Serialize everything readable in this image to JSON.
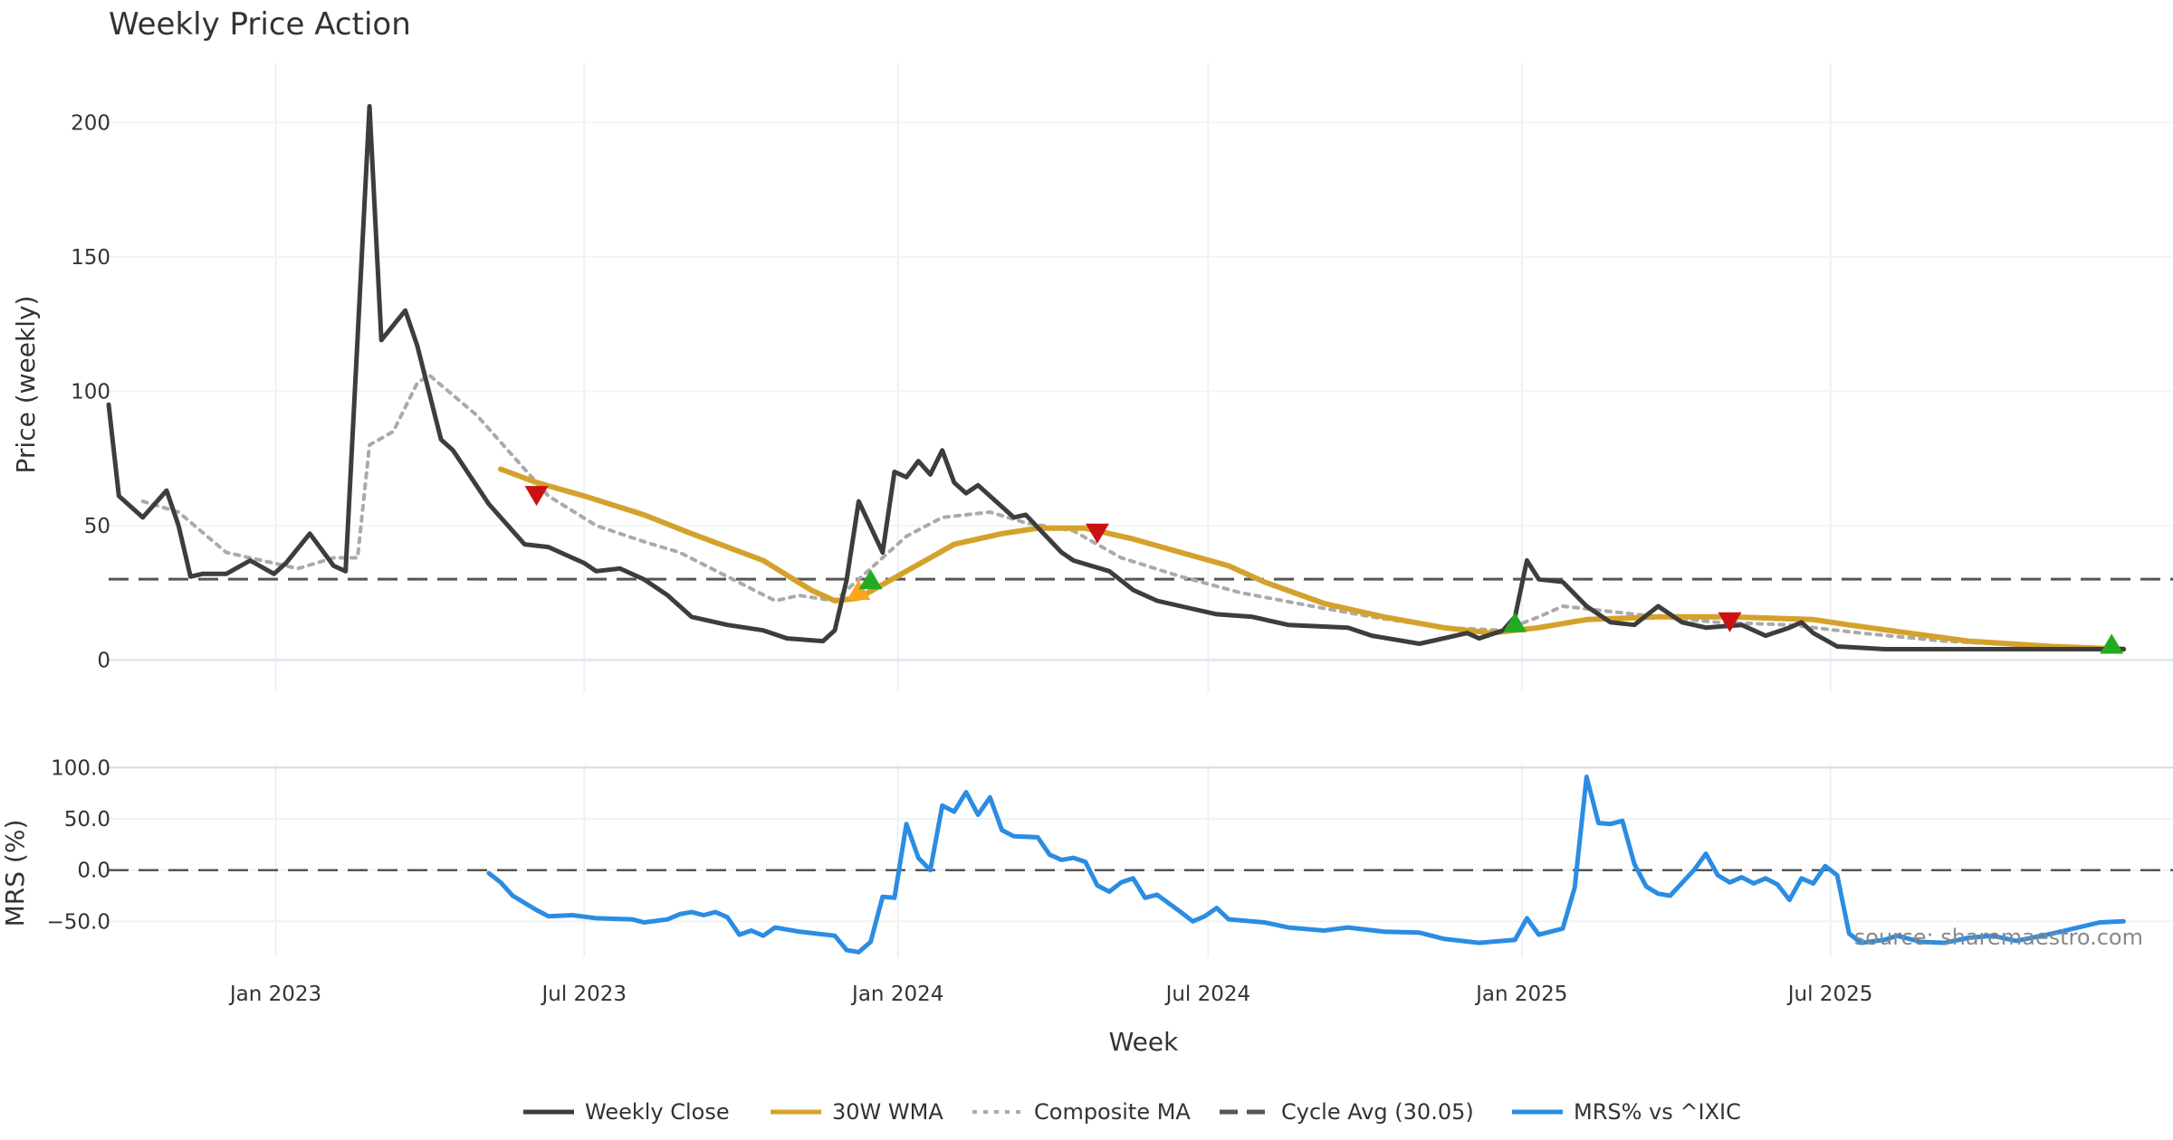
{
  "chart_data": {
    "type": "line",
    "title": "Weekly Price Action",
    "xlabel": "Week",
    "x_ticks": [
      {
        "label": "Jan 2023",
        "date": "2023-01-01"
      },
      {
        "label": "Jul 2023",
        "date": "2023-07-01"
      },
      {
        "label": "Jan 2024",
        "date": "2024-01-01"
      },
      {
        "label": "Jul 2024",
        "date": "2024-07-01"
      },
      {
        "label": "Jan 2025",
        "date": "2025-01-01"
      },
      {
        "label": "Jul 2025",
        "date": "2025-07-01"
      }
    ],
    "x_range": [
      "2022-09-25",
      "2026-01-18"
    ],
    "price_panel": {
      "ylabel": "Price (weekly)",
      "ylim": [
        -12,
        222
      ],
      "yticks": [
        0,
        50,
        100,
        150,
        200
      ],
      "yticklabels": [
        "0",
        "50",
        "100",
        "150",
        "200"
      ]
    },
    "mrs_panel": {
      "ylabel": "MRS (%)",
      "ylim": [
        -85,
        103
      ],
      "yticks": [
        100,
        50,
        0,
        -50
      ],
      "yticklabels": [
        "100.0",
        "50.0",
        "0.0",
        "−50.0"
      ]
    },
    "cycle_avg": 30.05,
    "series": [
      {
        "name": "Weekly Close",
        "color": "#3d3d3d",
        "dash": "solid",
        "points": [
          [
            "2022-09-25",
            95
          ],
          [
            "2022-10-01",
            61
          ],
          [
            "2022-10-15",
            53
          ],
          [
            "2022-10-29",
            63
          ],
          [
            "2022-11-05",
            50
          ],
          [
            "2022-11-12",
            31
          ],
          [
            "2022-11-19",
            32
          ],
          [
            "2022-12-03",
            32
          ],
          [
            "2022-12-17",
            37
          ],
          [
            "2022-12-31",
            32
          ],
          [
            "2023-01-07",
            36
          ],
          [
            "2023-01-21",
            47
          ],
          [
            "2023-02-04",
            35
          ],
          [
            "2023-02-11",
            33
          ],
          [
            "2023-02-25",
            206
          ],
          [
            "2023-03-04",
            119
          ],
          [
            "2023-03-18",
            130
          ],
          [
            "2023-03-25",
            117
          ],
          [
            "2023-04-08",
            82
          ],
          [
            "2023-04-15",
            78
          ],
          [
            "2023-05-06",
            58
          ],
          [
            "2023-05-27",
            43
          ],
          [
            "2023-06-10",
            42
          ],
          [
            "2023-07-01",
            36
          ],
          [
            "2023-07-08",
            33
          ],
          [
            "2023-07-22",
            34
          ],
          [
            "2023-08-05",
            30
          ],
          [
            "2023-08-19",
            24
          ],
          [
            "2023-09-02",
            16
          ],
          [
            "2023-09-23",
            13
          ],
          [
            "2023-10-14",
            11
          ],
          [
            "2023-10-28",
            8
          ],
          [
            "2023-11-18",
            7
          ],
          [
            "2023-11-25",
            11
          ],
          [
            "2023-12-02",
            30
          ],
          [
            "2023-12-09",
            59
          ],
          [
            "2023-12-23",
            40
          ],
          [
            "2023-12-30",
            70
          ],
          [
            "2024-01-06",
            68
          ],
          [
            "2024-01-13",
            74
          ],
          [
            "2024-01-20",
            69
          ],
          [
            "2024-01-27",
            78
          ],
          [
            "2024-02-03",
            66
          ],
          [
            "2024-02-10",
            62
          ],
          [
            "2024-02-17",
            65
          ],
          [
            "2024-03-09",
            53
          ],
          [
            "2024-03-16",
            54
          ],
          [
            "2024-04-06",
            40
          ],
          [
            "2024-04-13",
            37
          ],
          [
            "2024-05-04",
            33
          ],
          [
            "2024-05-18",
            26
          ],
          [
            "2024-06-01",
            22
          ],
          [
            "2024-06-15",
            20
          ],
          [
            "2024-07-06",
            17
          ],
          [
            "2024-07-27",
            16
          ],
          [
            "2024-08-17",
            13
          ],
          [
            "2024-09-21",
            12
          ],
          [
            "2024-10-05",
            9
          ],
          [
            "2024-11-02",
            6
          ],
          [
            "2024-11-30",
            10
          ],
          [
            "2024-12-07",
            8
          ],
          [
            "2024-12-21",
            11
          ],
          [
            "2024-12-28",
            16
          ],
          [
            "2025-01-04",
            37
          ],
          [
            "2025-01-11",
            30
          ],
          [
            "2025-01-25",
            29
          ],
          [
            "2025-02-08",
            20
          ],
          [
            "2025-02-22",
            14
          ],
          [
            "2025-03-08",
            13
          ],
          [
            "2025-03-22",
            20
          ],
          [
            "2025-04-05",
            14
          ],
          [
            "2025-04-19",
            12
          ],
          [
            "2025-05-10",
            13
          ],
          [
            "2025-05-24",
            9
          ],
          [
            "2025-06-07",
            12
          ],
          [
            "2025-06-14",
            14
          ],
          [
            "2025-06-21",
            10
          ],
          [
            "2025-07-05",
            5
          ],
          [
            "2025-08-02",
            4
          ],
          [
            "2025-09-06",
            4
          ],
          [
            "2025-10-11",
            4
          ],
          [
            "2025-12-20",
            4
          ]
        ]
      },
      {
        "name": "30W WMA",
        "color": "#d4a22c",
        "dash": "solid",
        "points": [
          [
            "2023-05-13",
            71
          ],
          [
            "2023-06-03",
            66
          ],
          [
            "2023-07-01",
            61
          ],
          [
            "2023-08-05",
            54
          ],
          [
            "2023-09-02",
            47
          ],
          [
            "2023-10-14",
            37
          ],
          [
            "2023-11-11",
            26
          ],
          [
            "2023-11-25",
            22
          ],
          [
            "2023-12-09",
            23
          ],
          [
            "2024-01-06",
            33
          ],
          [
            "2024-02-03",
            43
          ],
          [
            "2024-03-02",
            47
          ],
          [
            "2024-03-23",
            49
          ],
          [
            "2024-04-20",
            49
          ],
          [
            "2024-05-18",
            45
          ],
          [
            "2024-06-15",
            40
          ],
          [
            "2024-07-13",
            35
          ],
          [
            "2024-08-03",
            29
          ],
          [
            "2024-09-07",
            21
          ],
          [
            "2024-10-12",
            16
          ],
          [
            "2024-11-16",
            12
          ],
          [
            "2024-12-14",
            10
          ],
          [
            "2025-01-11",
            12
          ],
          [
            "2025-02-08",
            15
          ],
          [
            "2025-03-22",
            16
          ],
          [
            "2025-05-03",
            16
          ],
          [
            "2025-06-21",
            15
          ],
          [
            "2025-07-12",
            13
          ],
          [
            "2025-08-16",
            10
          ],
          [
            "2025-09-20",
            7
          ],
          [
            "2025-11-08",
            5
          ],
          [
            "2025-12-20",
            4
          ]
        ]
      },
      {
        "name": "Composite MA",
        "color": "#aaaaaa",
        "dash": "dotted",
        "points": [
          [
            "2022-10-15",
            59
          ],
          [
            "2022-11-05",
            55
          ],
          [
            "2022-12-03",
            40
          ],
          [
            "2023-01-14",
            34
          ],
          [
            "2023-02-04",
            38
          ],
          [
            "2023-02-18",
            38
          ],
          [
            "2023-02-25",
            80
          ],
          [
            "2023-03-11",
            85
          ],
          [
            "2023-03-25",
            103
          ],
          [
            "2023-04-01",
            106
          ],
          [
            "2023-04-29",
            91
          ],
          [
            "2023-05-27",
            71
          ],
          [
            "2023-06-10",
            61
          ],
          [
            "2023-07-08",
            50
          ],
          [
            "2023-08-05",
            44
          ],
          [
            "2023-08-26",
            40
          ],
          [
            "2023-09-23",
            31
          ],
          [
            "2023-10-21",
            22
          ],
          [
            "2023-11-04",
            24
          ],
          [
            "2023-11-25",
            22
          ],
          [
            "2023-12-16",
            34
          ],
          [
            "2024-01-06",
            46
          ],
          [
            "2024-01-27",
            53
          ],
          [
            "2024-02-24",
            55
          ],
          [
            "2024-03-16",
            51
          ],
          [
            "2024-04-13",
            48
          ],
          [
            "2024-05-11",
            38
          ],
          [
            "2024-06-15",
            31
          ],
          [
            "2024-07-20",
            25
          ],
          [
            "2024-08-31",
            20
          ],
          [
            "2024-10-05",
            16
          ],
          [
            "2024-11-16",
            12
          ],
          [
            "2024-12-21",
            11
          ],
          [
            "2025-01-11",
            16
          ],
          [
            "2025-01-25",
            20
          ],
          [
            "2025-02-22",
            18
          ],
          [
            "2025-03-22",
            16
          ],
          [
            "2025-04-26",
            14
          ],
          [
            "2025-06-07",
            13
          ],
          [
            "2025-07-19",
            10
          ],
          [
            "2025-09-06",
            7
          ],
          [
            "2025-11-08",
            5
          ],
          [
            "2025-12-20",
            4
          ]
        ]
      },
      {
        "name": "Cycle Avg (30.05)",
        "color": "#555555",
        "dash": "dashed",
        "value": 30.05
      },
      {
        "name": "MRS% vs ^IXIC",
        "color": "#2b8ce3",
        "dash": "solid",
        "panel": "mrs",
        "points": [
          [
            "2023-05-06",
            -3
          ],
          [
            "2023-05-13",
            -12
          ],
          [
            "2023-05-20",
            -25
          ],
          [
            "2023-06-03",
            -39
          ],
          [
            "2023-06-10",
            -45
          ],
          [
            "2023-06-24",
            -44
          ],
          [
            "2023-07-08",
            -47
          ],
          [
            "2023-07-29",
            -48
          ],
          [
            "2023-08-05",
            -51
          ],
          [
            "2023-08-19",
            -48
          ],
          [
            "2023-08-26",
            -43
          ],
          [
            "2023-09-02",
            -41
          ],
          [
            "2023-09-09",
            -44
          ],
          [
            "2023-09-16",
            -41
          ],
          [
            "2023-09-23",
            -46
          ],
          [
            "2023-09-30",
            -63
          ],
          [
            "2023-10-07",
            -59
          ],
          [
            "2023-10-14",
            -64
          ],
          [
            "2023-10-21",
            -56
          ],
          [
            "2023-11-04",
            -60
          ],
          [
            "2023-11-25",
            -64
          ],
          [
            "2023-12-02",
            -78
          ],
          [
            "2023-12-09",
            -80
          ],
          [
            "2023-12-16",
            -70
          ],
          [
            "2023-12-23",
            -26
          ],
          [
            "2023-12-30",
            -27
          ],
          [
            "2024-01-06",
            45
          ],
          [
            "2024-01-13",
            12
          ],
          [
            "2024-01-20",
            0
          ],
          [
            "2024-01-27",
            63
          ],
          [
            "2024-02-03",
            57
          ],
          [
            "2024-02-10",
            76
          ],
          [
            "2024-02-17",
            54
          ],
          [
            "2024-02-24",
            71
          ],
          [
            "2024-03-02",
            39
          ],
          [
            "2024-03-09",
            33
          ],
          [
            "2024-03-23",
            32
          ],
          [
            "2024-03-30",
            15
          ],
          [
            "2024-04-06",
            10
          ],
          [
            "2024-04-13",
            12
          ],
          [
            "2024-04-20",
            8
          ],
          [
            "2024-04-27",
            -15
          ],
          [
            "2024-05-04",
            -21
          ],
          [
            "2024-05-11",
            -12
          ],
          [
            "2024-05-18",
            -8
          ],
          [
            "2024-05-25",
            -27
          ],
          [
            "2024-06-01",
            -24
          ],
          [
            "2024-06-15",
            -41
          ],
          [
            "2024-06-22",
            -50
          ],
          [
            "2024-06-29",
            -45
          ],
          [
            "2024-07-06",
            -37
          ],
          [
            "2024-07-13",
            -48
          ],
          [
            "2024-08-03",
            -51
          ],
          [
            "2024-08-17",
            -56
          ],
          [
            "2024-09-07",
            -59
          ],
          [
            "2024-09-21",
            -56
          ],
          [
            "2024-10-12",
            -60
          ],
          [
            "2024-11-02",
            -61
          ],
          [
            "2024-11-16",
            -67
          ],
          [
            "2024-12-07",
            -71
          ],
          [
            "2024-12-28",
            -68
          ],
          [
            "2025-01-04",
            -47
          ],
          [
            "2025-01-11",
            -63
          ],
          [
            "2025-01-25",
            -57
          ],
          [
            "2025-02-01",
            -17
          ],
          [
            "2025-02-08",
            91
          ],
          [
            "2025-02-15",
            46
          ],
          [
            "2025-02-22",
            45
          ],
          [
            "2025-03-01",
            48
          ],
          [
            "2025-03-08",
            6
          ],
          [
            "2025-03-15",
            -16
          ],
          [
            "2025-03-22",
            -23
          ],
          [
            "2025-03-29",
            -25
          ],
          [
            "2025-04-12",
            0
          ],
          [
            "2025-04-19",
            16
          ],
          [
            "2025-04-26",
            -5
          ],
          [
            "2025-05-03",
            -12
          ],
          [
            "2025-05-10",
            -7
          ],
          [
            "2025-05-17",
            -13
          ],
          [
            "2025-05-24",
            -8
          ],
          [
            "2025-05-31",
            -14
          ],
          [
            "2025-06-07",
            -29
          ],
          [
            "2025-06-14",
            -8
          ],
          [
            "2025-06-21",
            -13
          ],
          [
            "2025-06-28",
            4
          ],
          [
            "2025-07-05",
            -5
          ],
          [
            "2025-07-12",
            -62
          ],
          [
            "2025-07-19",
            -71
          ],
          [
            "2025-08-02",
            -68
          ],
          [
            "2025-08-09",
            -64
          ],
          [
            "2025-08-23",
            -70
          ],
          [
            "2025-09-06",
            -71
          ],
          [
            "2025-09-20",
            -66
          ],
          [
            "2025-10-04",
            -64
          ],
          [
            "2025-10-18",
            -69
          ],
          [
            "2025-11-08",
            -62
          ],
          [
            "2025-12-06",
            -51
          ],
          [
            "2025-12-20",
            -50
          ]
        ]
      }
    ],
    "signals": [
      {
        "type": "sell",
        "date": "2023-06-03",
        "value": 61,
        "color": "#cc1111"
      },
      {
        "type": "buy",
        "date": "2023-12-09",
        "value": 26,
        "color": "#ffa41b"
      },
      {
        "type": "buy",
        "date": "2023-12-16",
        "value": 30,
        "color": "#22aa22"
      },
      {
        "type": "sell",
        "date": "2024-04-27",
        "value": 47,
        "color": "#cc1111"
      },
      {
        "type": "buy",
        "date": "2024-12-28",
        "value": 14,
        "color": "#22aa22"
      },
      {
        "type": "sell",
        "date": "2025-05-03",
        "value": 14,
        "color": "#cc1111"
      },
      {
        "type": "buy",
        "date": "2025-12-13",
        "value": 6,
        "color": "#22aa22"
      }
    ],
    "legend": [
      "Weekly Close",
      "30W WMA",
      "Composite MA",
      "Cycle Avg (30.05)",
      "MRS% vs ^IXIC"
    ],
    "legend_placement": "bottom-center",
    "annotation": "source: sharemaestro.com"
  }
}
